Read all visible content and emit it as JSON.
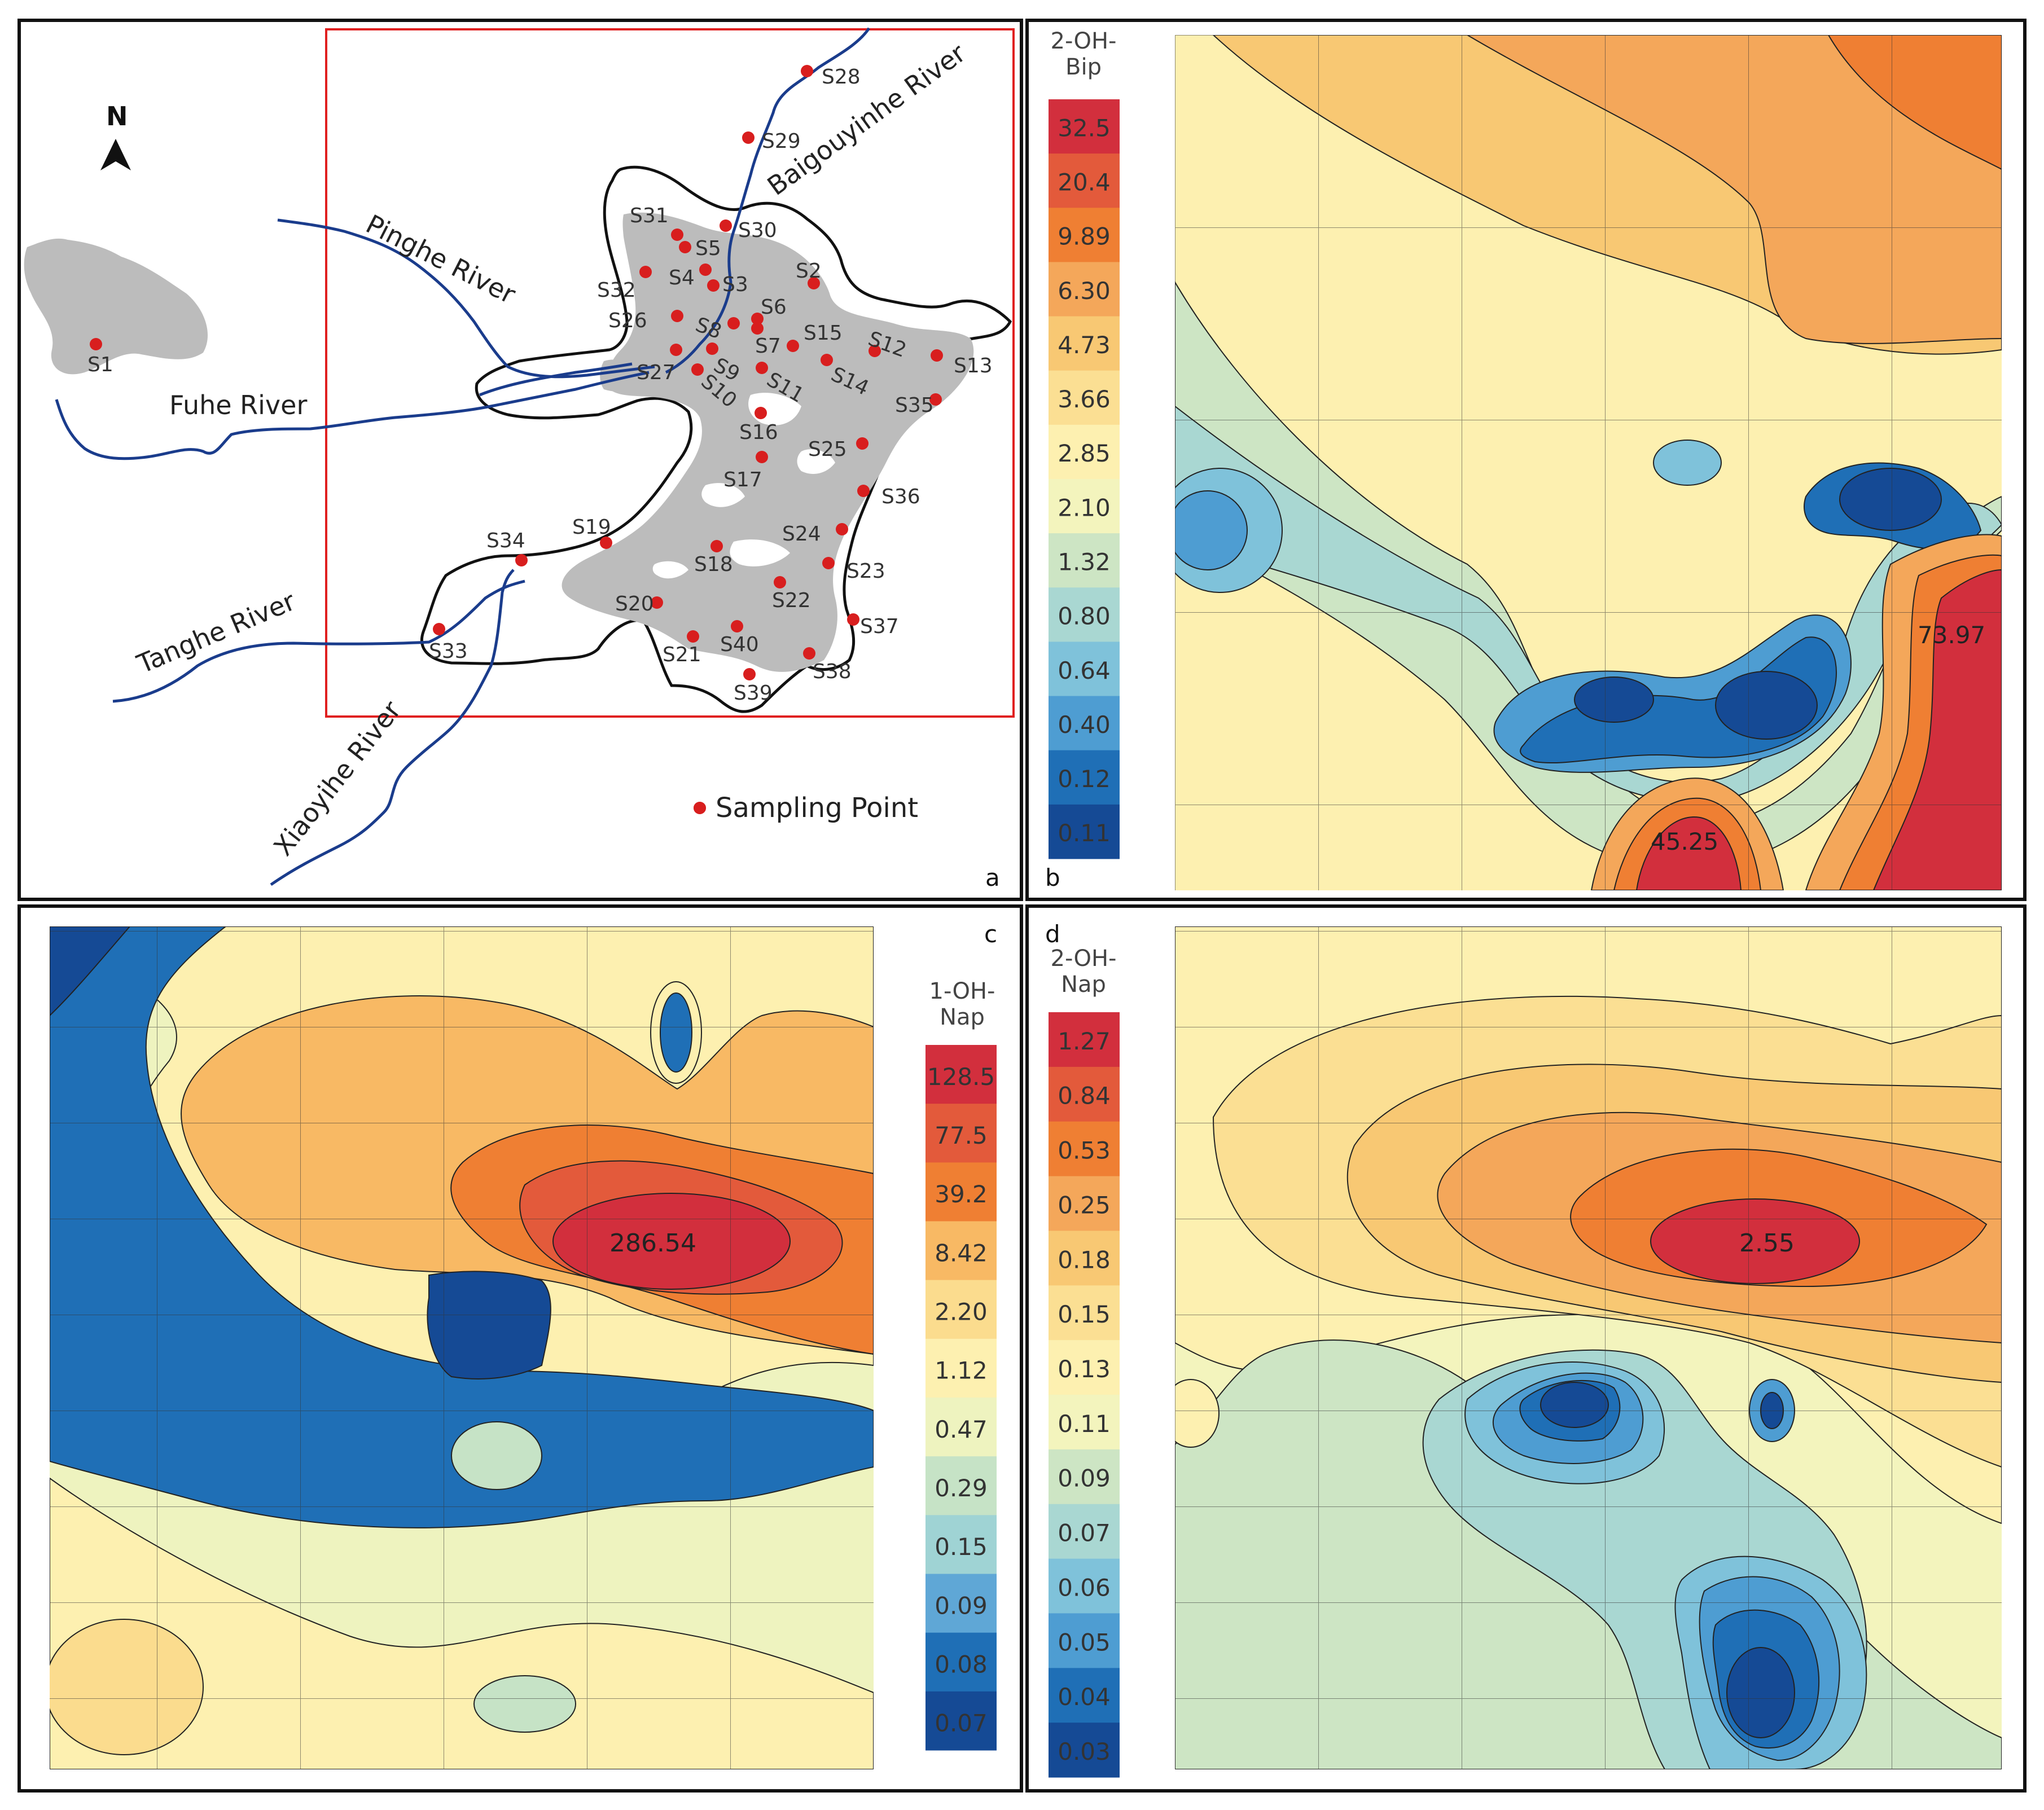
{
  "panel_a": {
    "letter": "a",
    "north": "N",
    "legend": "Sampling Point",
    "rivers": {
      "baigouyinhe": "Baigouyinhe River",
      "pinghe": "Pinghe River",
      "fuhe": "Fuhe River",
      "tanghe": "Tanghe River",
      "xiaoyihe": "Xiaoyihe River"
    },
    "sites": [
      "S1",
      "S2",
      "S3",
      "S4",
      "S5",
      "S6",
      "S7",
      "S8",
      "S9",
      "S10",
      "S11",
      "S12",
      "S13",
      "S14",
      "S15",
      "S16",
      "S17",
      "S18",
      "S19",
      "S20",
      "S21",
      "S22",
      "S23",
      "S24",
      "S25",
      "S26",
      "S27",
      "S28",
      "S29",
      "S30",
      "S31",
      "S32",
      "S33",
      "S34",
      "S35",
      "S36",
      "S37",
      "S38",
      "S39",
      "S40"
    ]
  },
  "panel_b": {
    "letter": "b",
    "title": "2-OH-\nBip",
    "scale": [
      "32.5",
      "20.4",
      "9.89",
      "6.30",
      "4.73",
      "3.66",
      "2.85",
      "2.10",
      "1.32",
      "0.80",
      "0.64",
      "0.40",
      "0.12",
      "0.11"
    ],
    "peaks": [
      "73.97",
      "45.25"
    ]
  },
  "panel_c": {
    "letter": "c",
    "title": "1-OH-\nNap",
    "scale": [
      "128.5",
      "77.5",
      "39.2",
      "8.42",
      "2.20",
      "1.12",
      "0.47",
      "0.29",
      "0.15",
      "0.09",
      "0.08",
      "0.07"
    ],
    "peaks": [
      "286.54"
    ]
  },
  "panel_d": {
    "letter": "d",
    "title": "2-OH-\nNap",
    "scale": [
      "1.27",
      "0.84",
      "0.53",
      "0.25",
      "0.18",
      "0.15",
      "0.13",
      "0.11",
      "0.09",
      "0.07",
      "0.06",
      "0.05",
      "0.04",
      "0.03"
    ],
    "peaks": [
      "2.55"
    ]
  },
  "colors": {
    "scale_14": [
      "#d22f3d",
      "#e35a3b",
      "#ef7f33",
      "#f4a75a",
      "#f8c873",
      "#fbdf93",
      "#fdf0b0",
      "#f3f4bd",
      "#cde5c4",
      "#a9d7d2",
      "#7fc2da",
      "#4e9dd2",
      "#1f6fb6",
      "#154a95"
    ],
    "scale_12": [
      "#d22f3d",
      "#e35a3b",
      "#ef7f33",
      "#f8b964",
      "#fbdc8e",
      "#fdf0b0",
      "#eef3bf",
      "#c6e3c6",
      "#9fd3d4",
      "#5fa7d6",
      "#1f6fb6",
      "#154a95"
    ],
    "river": "#1a3c8c",
    "site": "#d81e1e",
    "urban": "#bcbcbc",
    "frame": "#e02020"
  }
}
